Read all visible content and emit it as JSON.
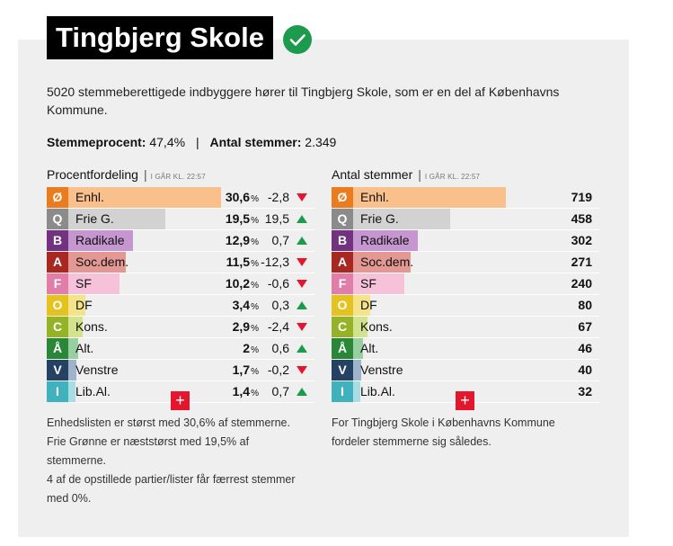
{
  "header": {
    "title": "Tingbjerg Skole",
    "status_icon": "checkmark-circle-icon"
  },
  "intro": "5020 stemmeberettigede indbyggere hører til Tingbjerg Skole, som er en del af Københavns Kommune.",
  "stats": {
    "turnout_label": "Stemmeprocent:",
    "turnout_value": "47,4%",
    "votes_label": "Antal stemmer:",
    "votes_value": "2.349"
  },
  "left": {
    "heading": "Procentfordeling",
    "stamp": "I GÅR KL. 22:57",
    "unit": "%",
    "rows": [
      {
        "letter": "Ø",
        "name": "Enhl.",
        "pct": "30,6",
        "chg": "-2,8",
        "dir": "down",
        "color": "#ea7c1f",
        "light": "#f9c08c",
        "share": 0.306
      },
      {
        "letter": "Q",
        "name": "Frie G.",
        "pct": "19,5",
        "chg": "19,5",
        "dir": "up",
        "color": "#8b8b8b",
        "light": "#d2d2d2",
        "share": 0.195
      },
      {
        "letter": "B",
        "name": "Radikale",
        "pct": "12,9",
        "chg": "0,7",
        "dir": "up",
        "color": "#733280",
        "light": "#c596cf",
        "share": 0.129
      },
      {
        "letter": "A",
        "name": "Soc.dem.",
        "pct": "11,5",
        "chg": "-12,3",
        "dir": "down",
        "color": "#a82721",
        "light": "#e49894",
        "share": 0.115
      },
      {
        "letter": "F",
        "name": "SF",
        "pct": "10,2",
        "chg": "-0,6",
        "dir": "down",
        "color": "#e07ea8",
        "light": "#f6c2da",
        "share": 0.102
      },
      {
        "letter": "O",
        "name": "DF",
        "pct": "3,4",
        "chg": "0,3",
        "dir": "up",
        "color": "#e4c220",
        "light": "#f5e38a",
        "share": 0.034
      },
      {
        "letter": "C",
        "name": "Kons.",
        "pct": "2,9",
        "chg": "-2,4",
        "dir": "down",
        "color": "#96b226",
        "light": "#d3e28c",
        "share": 0.029
      },
      {
        "letter": "Å",
        "name": "Alt.",
        "pct": "2",
        "chg": "0,6",
        "dir": "up",
        "color": "#2b8738",
        "light": "#98cf9f",
        "share": 0.02
      },
      {
        "letter": "V",
        "name": "Venstre",
        "pct": "1,7",
        "chg": "-0,2",
        "dir": "down",
        "color": "#254264",
        "light": "#9fb3cb",
        "share": 0.017
      },
      {
        "letter": "I",
        "name": "Lib.Al.",
        "pct": "1,4",
        "chg": "0,7",
        "dir": "up",
        "color": "#3fb2be",
        "light": "#a9dde3",
        "share": 0.014
      }
    ],
    "note": [
      "Enhedslisten er størst med 30,6% af stemmerne.",
      "Frie Grønne er næststørst med 19,5% af",
      "stemmerne.",
      "4 af de opstillede partier/lister får færrest stemmer",
      "med 0%."
    ]
  },
  "right": {
    "heading": "Antal stemmer",
    "stamp": "I GÅR KL. 22:57",
    "votes": [
      "719",
      "458",
      "302",
      "271",
      "240",
      "80",
      "67",
      "46",
      "40",
      "32"
    ],
    "note": [
      "For Tingbjerg Skole i Københavns Kommune",
      "fordeler stemmerne sig således."
    ]
  },
  "expand_symbol": "+"
}
